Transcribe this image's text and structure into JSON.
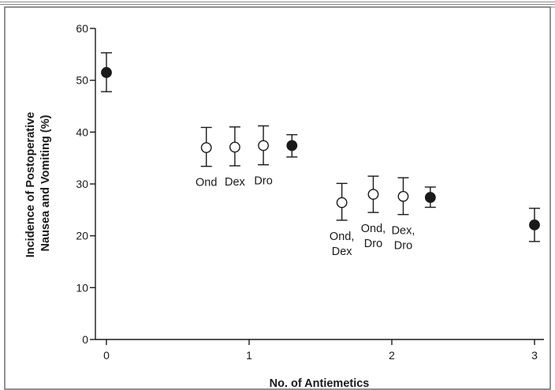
{
  "chart_data": {
    "type": "scatter",
    "title": "",
    "xlabel": "No. of Antiemetics",
    "ylabel_lines": [
      "Incidence of Postoperative",
      "Nausea and Vomiting (%)"
    ],
    "xlim": [
      -0.05,
      3.05
    ],
    "ylim": [
      0,
      60
    ],
    "x_ticks": [
      0,
      1,
      2,
      3
    ],
    "x_tick_labels": [
      "0",
      "1",
      "2",
      "3"
    ],
    "y_ticks": [
      0,
      10,
      20,
      30,
      40,
      50,
      60
    ],
    "y_tick_labels": [
      "0",
      "10",
      "20",
      "30",
      "40",
      "50",
      "60"
    ],
    "grid": false,
    "marker_colors": {
      "filled": "#1a1a1a",
      "open": "#ffffff",
      "line": "#1a1a1a"
    },
    "points": [
      {
        "x": 0.0,
        "y": 51.5,
        "lower": 47.8,
        "upper": 55.3,
        "marker": "filled",
        "label_lines": []
      },
      {
        "x": 0.7,
        "y": 37.0,
        "lower": 33.4,
        "upper": 40.9,
        "marker": "open",
        "label_lines": [
          "Ond"
        ]
      },
      {
        "x": 0.9,
        "y": 37.1,
        "lower": 33.5,
        "upper": 41.0,
        "marker": "open",
        "label_lines": [
          "Dex"
        ]
      },
      {
        "x": 1.1,
        "y": 37.4,
        "lower": 33.7,
        "upper": 41.2,
        "marker": "open",
        "label_lines": [
          "Dro"
        ]
      },
      {
        "x": 1.3,
        "y": 37.4,
        "lower": 35.2,
        "upper": 39.5,
        "marker": "filled",
        "label_lines": []
      },
      {
        "x": 1.65,
        "y": 26.4,
        "lower": 23.0,
        "upper": 30.1,
        "marker": "open",
        "label_lines": [
          "Ond,",
          "Dex"
        ]
      },
      {
        "x": 1.87,
        "y": 28.0,
        "lower": 24.5,
        "upper": 31.5,
        "marker": "open",
        "label_lines": [
          "Ond,",
          "Dro"
        ]
      },
      {
        "x": 2.08,
        "y": 27.6,
        "lower": 24.1,
        "upper": 31.2,
        "marker": "open",
        "label_lines": [
          "Dex,",
          "Dro"
        ]
      },
      {
        "x": 2.27,
        "y": 27.4,
        "lower": 25.5,
        "upper": 29.4,
        "marker": "filled",
        "label_lines": []
      },
      {
        "x": 3.0,
        "y": 22.1,
        "lower": 18.9,
        "upper": 25.3,
        "marker": "filled",
        "label_lines": []
      }
    ]
  }
}
